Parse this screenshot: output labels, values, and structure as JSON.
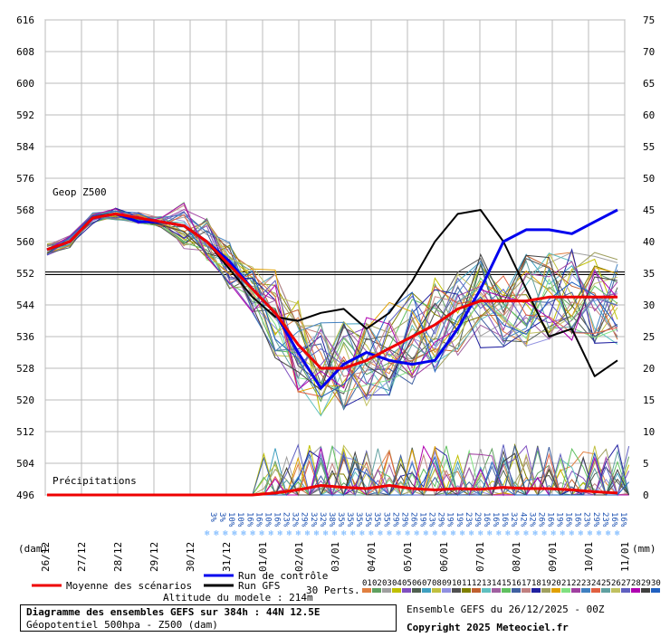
{
  "chart_data": {
    "type": "line",
    "y_left": {
      "unit_label": "(dam)",
      "ylim": [
        496,
        616
      ],
      "ticks": [
        496,
        504,
        512,
        520,
        528,
        536,
        544,
        552,
        560,
        568,
        576,
        584,
        592,
        600,
        608,
        616
      ]
    },
    "y_right": {
      "unit_label": "(mm)",
      "ylim": [
        0,
        75
      ],
      "ticks": [
        0,
        5,
        10,
        15,
        20,
        25,
        30,
        35,
        40,
        45,
        50,
        55,
        60,
        65,
        70,
        75
      ]
    },
    "x": {
      "tick_labels": [
        "26/12",
        "27/12",
        "28/12",
        "29/12",
        "30/12",
        "31/12",
        "01/01",
        "02/01",
        "03/01",
        "04/01",
        "05/01",
        "06/01",
        "07/01",
        "08/01",
        "09/01",
        "10/01",
        "11/01"
      ]
    },
    "panel_labels": {
      "geop": "Geop Z500",
      "precip": "Précipitations"
    },
    "reference_level": 552,
    "percent_labels": [
      "3%",
      "3%",
      "10%",
      "10%",
      "16%",
      "16%",
      "10%",
      "16%",
      "23%",
      "32%",
      "29%",
      "32%",
      "32%",
      "38%",
      "35%",
      "35%",
      "35%",
      "35%",
      "35%",
      "35%",
      "29%",
      "29%",
      "26%",
      "19%",
      "23%",
      "29%",
      "19%",
      "19%",
      "23%",
      "29%",
      "16%",
      "16%",
      "16%",
      "32%",
      "42%",
      "32%",
      "26%",
      "16%",
      "19%",
      "16%",
      "16%",
      "23%",
      "29%",
      "23%",
      "16%",
      "16%"
    ],
    "mean_z500": [
      558,
      560,
      566,
      567,
      566,
      565,
      564,
      560,
      554,
      548,
      542,
      534,
      528,
      528,
      530,
      533,
      536,
      539,
      543,
      545,
      545,
      545,
      546,
      546,
      546,
      546
    ],
    "control_z500": [
      558,
      560,
      566,
      567,
      565,
      565,
      564,
      560,
      555,
      548,
      542,
      532,
      523,
      529,
      532,
      530,
      529,
      530,
      538,
      548,
      560,
      563,
      563,
      562,
      565,
      568
    ],
    "gfs_z500": [
      558,
      560,
      566,
      567,
      566,
      565,
      564,
      560,
      553,
      546,
      541,
      540,
      542,
      543,
      538,
      542,
      550,
      560,
      567,
      568,
      560,
      548,
      536,
      538,
      526,
      530
    ],
    "mean_precip": [
      0,
      0,
      0,
      0,
      0,
      0,
      0,
      0,
      0,
      0,
      0.3,
      0.8,
      1.5,
      1.2,
      1.0,
      1.5,
      1.0,
      0.8,
      1.0,
      0.9,
      1.2,
      1.0,
      1.0,
      0.8,
      0.5,
      0.3
    ]
  },
  "legend": {
    "mean": "Moyenne des scénarios",
    "mean_color": "#ee0000",
    "control": "Run de contrôle",
    "control_color": "#0000ee",
    "gfs": "Run GFS",
    "gfs_color": "#000000",
    "perts": "30 Perts.",
    "pert_numbers": [
      "01",
      "02",
      "03",
      "04",
      "05",
      "06",
      "07",
      "08",
      "09",
      "10",
      "11",
      "12",
      "13",
      "14",
      "15",
      "16",
      "17",
      "18",
      "19",
      "20",
      "21",
      "22",
      "23",
      "24",
      "25",
      "26",
      "27",
      "28",
      "29",
      "30"
    ],
    "pert_colors": [
      "#e08040",
      "#60a060",
      "#a0a0a0",
      "#c0c000",
      "#8050c0",
      "#506050",
      "#40a0c0",
      "#c0c040",
      "#9090e0",
      "#505050",
      "#808000",
      "#c06030",
      "#60c0c0",
      "#a060a0",
      "#60c060",
      "#4060a0",
      "#c08080",
      "#2020a0",
      "#a0a060",
      "#e0a000",
      "#80e080",
      "#a040a0",
      "#4080c0",
      "#e06040",
      "#60a0a0",
      "#c0c060",
      "#6060c0",
      "#b000b0",
      "#404040",
      "#2060c0"
    ]
  },
  "footer": {
    "altitude": "Altitude du modele : 214m",
    "title": "Diagramme des ensembles GEFS sur 384h : 44N 12.5E",
    "subtitle": "Géopotentiel 500hpa - Z500 (dam)",
    "ensemble": "Ensemble GEFS du 26/12/2025 - 00Z",
    "copyright": "Copyright 2025 Meteociel.fr"
  }
}
